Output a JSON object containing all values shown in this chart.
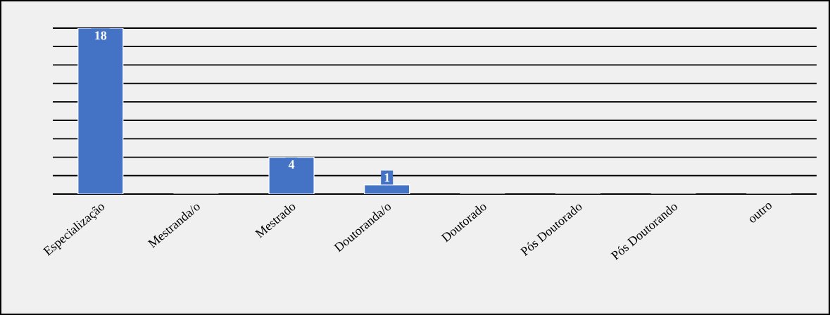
{
  "chart_data": {
    "type": "bar",
    "categories": [
      "Especialização",
      "Mestranda/o",
      "Mestrado",
      "Doutoranda/o",
      "Doutorado",
      "Pós Doutorado",
      "Pós Doutorando",
      "outro"
    ],
    "values": [
      18,
      0,
      4,
      1,
      0,
      0,
      0,
      0
    ],
    "value_labels": [
      "18",
      null,
      "4",
      "1",
      null,
      null,
      null,
      null
    ],
    "color": "#4472c4",
    "ylim": [
      0,
      18
    ],
    "yticks": [
      {
        "value": 0,
        "label": null
      },
      {
        "value": 2,
        "label": null
      },
      {
        "value": 4,
        "label": null
      },
      {
        "value": 6,
        "label": null
      },
      {
        "value": 8,
        "label": null
      },
      {
        "value": 10,
        "label": null
      },
      {
        "value": 12,
        "label": null
      },
      {
        "value": 14,
        "label": null
      },
      {
        "value": 16,
        "label": null
      },
      {
        "value": 18,
        "label": null
      }
    ],
    "grid": "y",
    "tick_labels": "x"
  }
}
